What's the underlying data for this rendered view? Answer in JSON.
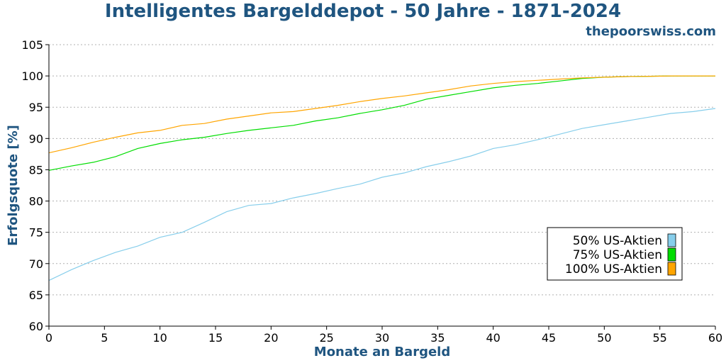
{
  "title": "Intelligentes Bargelddepot - 50 Jahre - 1871-2024",
  "watermark": "thepoorswiss.com",
  "chart_data": {
    "type": "line",
    "title": "Intelligentes Bargelddepot - 50 Jahre - 1871-2024",
    "xlabel": "Monate an Bargeld",
    "ylabel": "Erfolgsquote [%]",
    "xlim": [
      0,
      60
    ],
    "ylim": [
      60,
      105
    ],
    "xticks": [
      0,
      5,
      10,
      15,
      20,
      25,
      30,
      35,
      40,
      45,
      50,
      55,
      60
    ],
    "yticks": [
      60,
      65,
      70,
      75,
      80,
      85,
      90,
      95,
      100,
      105
    ],
    "grid": "horizontal dotted",
    "legend_position": "lower-right",
    "x": [
      0,
      2,
      4,
      6,
      8,
      10,
      12,
      14,
      16,
      18,
      20,
      22,
      24,
      26,
      28,
      30,
      32,
      34,
      36,
      38,
      40,
      42,
      44,
      46,
      48,
      50,
      52,
      54,
      56,
      58,
      60
    ],
    "series": [
      {
        "name": "50% US-Aktien",
        "color": "#87ceeb",
        "values": [
          67.3,
          69.0,
          70.5,
          71.8,
          72.8,
          74.2,
          75.0,
          76.6,
          78.3,
          79.3,
          79.6,
          80.5,
          81.2,
          82.0,
          82.7,
          83.8,
          84.5,
          85.5,
          86.3,
          87.2,
          88.4,
          89.0,
          89.8,
          90.7,
          91.6,
          92.2,
          92.8,
          93.4,
          94.0,
          94.3,
          94.8
        ]
      },
      {
        "name": "75% US-Aktien",
        "color": "#00dd00",
        "values": [
          84.9,
          85.6,
          86.2,
          87.1,
          88.4,
          89.2,
          89.8,
          90.2,
          90.8,
          91.3,
          91.7,
          92.1,
          92.8,
          93.3,
          94.0,
          94.6,
          95.3,
          96.3,
          96.9,
          97.5,
          98.1,
          98.5,
          98.8,
          99.2,
          99.6,
          99.8,
          99.9,
          99.95,
          100,
          100,
          100
        ]
      },
      {
        "name": "100% US-Aktien",
        "color": "#ffa500",
        "values": [
          87.7,
          88.5,
          89.4,
          90.2,
          90.9,
          91.3,
          92.1,
          92.4,
          93.1,
          93.6,
          94.1,
          94.3,
          94.8,
          95.3,
          95.9,
          96.4,
          96.8,
          97.3,
          97.8,
          98.4,
          98.8,
          99.1,
          99.3,
          99.5,
          99.7,
          99.8,
          99.9,
          99.95,
          100,
          100,
          100
        ]
      }
    ]
  }
}
